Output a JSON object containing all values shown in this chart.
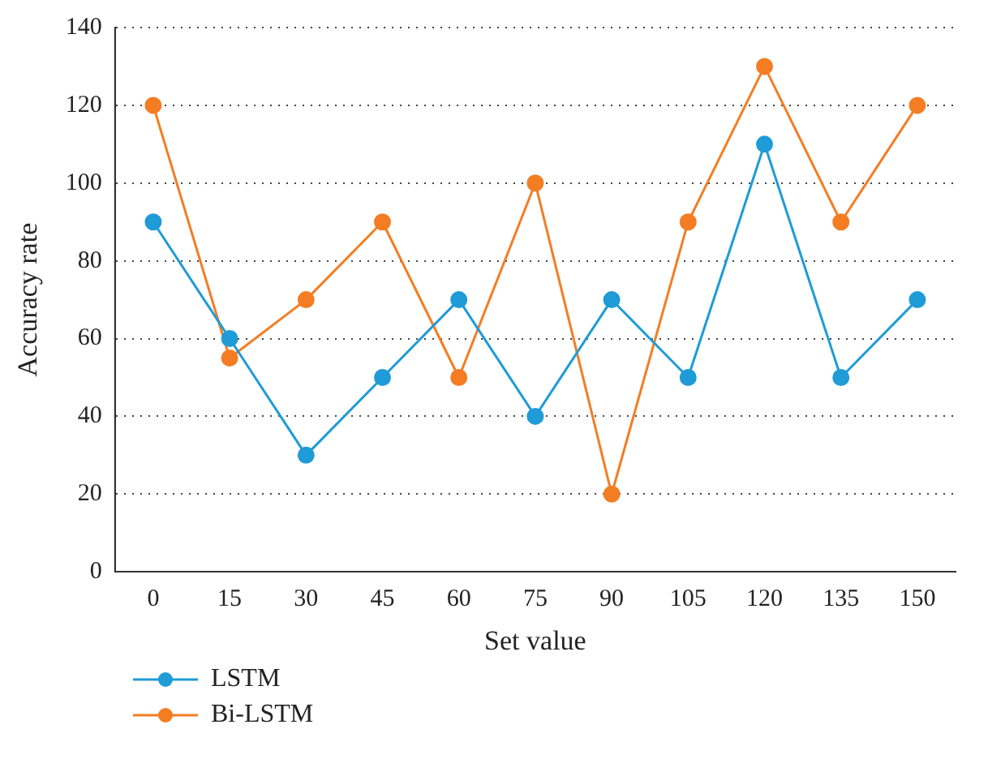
{
  "chart_data": {
    "type": "line",
    "xlabel": "Set value",
    "ylabel": "Accuracy rate",
    "categories": [
      "0",
      "15",
      "30",
      "45",
      "60",
      "75",
      "90",
      "105",
      "120",
      "135",
      "150"
    ],
    "series": [
      {
        "name": "LSTM",
        "color": "#1f9bd7",
        "values": [
          90,
          60,
          30,
          50,
          70,
          40,
          70,
          50,
          110,
          50,
          70
        ]
      },
      {
        "name": "Bi-LSTM",
        "color": "#f47d23",
        "values": [
          120,
          55,
          70,
          90,
          50,
          100,
          20,
          90,
          130,
          90,
          120
        ]
      }
    ],
    "ylim": [
      0,
      140
    ],
    "yticks": [
      0,
      20,
      40,
      60,
      80,
      100,
      120,
      140
    ],
    "grid": "y",
    "legend": "bottom left",
    "marker": "circle",
    "line_style": "solid"
  }
}
